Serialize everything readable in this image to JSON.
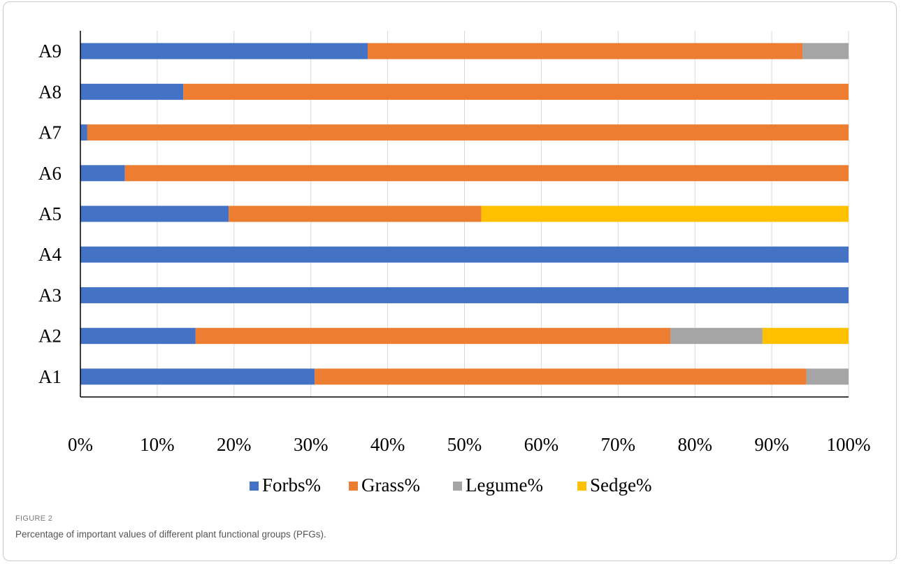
{
  "figure": {
    "label": "FIGURE 2",
    "caption": "Percentage of important values of different plant functional groups (PFGs)."
  },
  "chart_data": {
    "type": "bar",
    "orientation": "horizontal",
    "stacked": "percent",
    "categories": [
      "A1",
      "A2",
      "A3",
      "A4",
      "A5",
      "A6",
      "A7",
      "A8",
      "A9"
    ],
    "series": [
      {
        "name": "Forbs%",
        "color": "#4472C4",
        "values": [
          30.5,
          15.0,
          100,
          100,
          19.3,
          5.8,
          0.9,
          13.4,
          37.4
        ]
      },
      {
        "name": "Grass%",
        "color": "#ED7D31",
        "values": [
          64.0,
          61.8,
          0,
          0,
          32.9,
          94.2,
          99.1,
          86.6,
          56.6
        ]
      },
      {
        "name": "Legume%",
        "color": "#A5A5A5",
        "values": [
          5.5,
          12.0,
          0,
          0,
          0,
          0,
          0,
          0,
          6.0
        ]
      },
      {
        "name": "Sedge%",
        "color": "#FFC000",
        "values": [
          0,
          11.2,
          0,
          0,
          47.8,
          0,
          0,
          0,
          0
        ]
      }
    ],
    "x_ticks": [
      "0%",
      "10%",
      "20%",
      "30%",
      "40%",
      "50%",
      "60%",
      "70%",
      "80%",
      "90%",
      "100%"
    ],
    "xlim": [
      0,
      100
    ],
    "grid": "vertical",
    "legend": "bottom"
  }
}
